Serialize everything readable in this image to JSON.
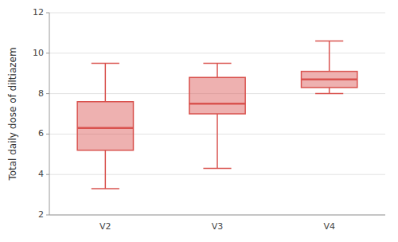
{
  "chart_data": {
    "type": "box",
    "categories": [
      "V2",
      "V3",
      "V4"
    ],
    "boxes": [
      {
        "whislo": 3.3,
        "q1": 5.2,
        "med": 6.3,
        "q3": 7.6,
        "whishi": 9.5
      },
      {
        "whislo": 4.3,
        "q1": 7.0,
        "med": 7.5,
        "q3": 8.8,
        "whishi": 9.5
      },
      {
        "whislo": 8.0,
        "q1": 8.3,
        "med": 8.7,
        "q3": 9.1,
        "whishi": 10.6
      }
    ],
    "ylabel": "Total daily dose of diltiazem",
    "ylim": [
      2,
      12
    ],
    "yticks": [
      2,
      4,
      6,
      8,
      10,
      12
    ],
    "color": "#d9534f",
    "grid": true
  }
}
